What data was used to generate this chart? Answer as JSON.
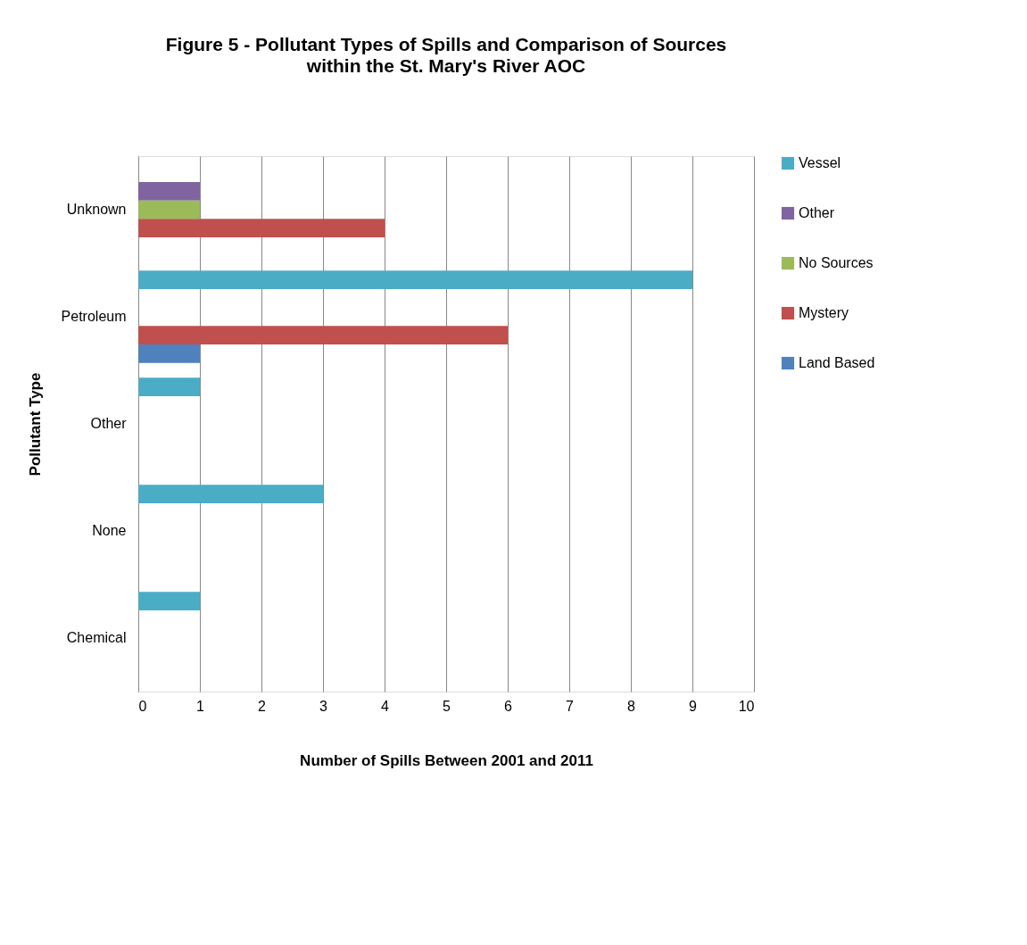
{
  "chart_data": {
    "type": "bar",
    "orientation": "horizontal",
    "title": "Figure 5 - Pollutant Types of Spills and Comparison of Sources",
    "subtitle": "within the St. Mary's River AOC",
    "xlabel": "Number of Spills Between 2001 and 2011",
    "ylabel": "Pollutant Type",
    "categories": [
      "Unknown",
      "Petroleum",
      "Other",
      "None",
      "Chemical"
    ],
    "series": [
      {
        "name": "Vessel",
        "color": "#4bacc6",
        "values": [
          null,
          9,
          1,
          3,
          1
        ]
      },
      {
        "name": "Other",
        "color": "#8064a2",
        "values": [
          1,
          null,
          null,
          null,
          null
        ]
      },
      {
        "name": "No Sources",
        "color": "#9bbb59",
        "values": [
          1,
          null,
          null,
          null,
          null
        ]
      },
      {
        "name": "Mystery",
        "color": "#c0504d",
        "values": [
          4,
          6,
          null,
          null,
          null
        ]
      },
      {
        "name": "Land Based",
        "color": "#4f81bd",
        "values": [
          null,
          1,
          null,
          null,
          null
        ]
      }
    ],
    "xlim": [
      0,
      10
    ],
    "xticks": [
      0,
      1,
      2,
      3,
      4,
      5,
      6,
      7,
      8,
      9,
      10
    ],
    "grid": "x",
    "legend": "right"
  }
}
